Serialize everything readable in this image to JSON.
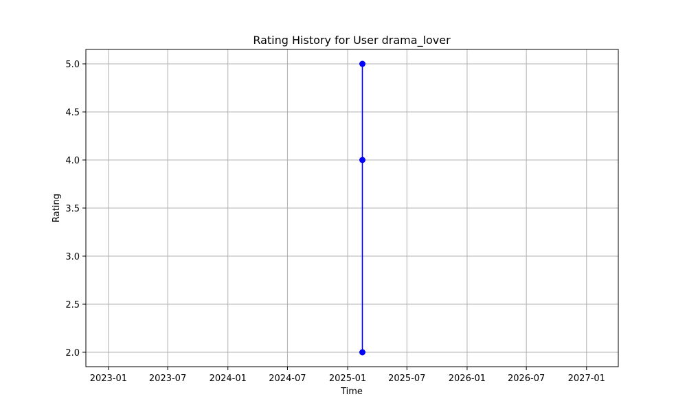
{
  "chart_data": {
    "type": "line",
    "title": "Rating History for User drama_lover",
    "xlabel": "Time",
    "ylabel": "Rating",
    "x_type": "date",
    "xlim": [
      "2022-10-24",
      "2027-04-08"
    ],
    "ylim": [
      1.85,
      5.15
    ],
    "x_ticks": [
      "2023-01-01",
      "2023-07-01",
      "2024-01-01",
      "2024-07-01",
      "2025-01-01",
      "2025-07-01",
      "2026-01-01",
      "2026-07-01",
      "2027-01-01"
    ],
    "x_tick_labels": [
      "2023-01",
      "2023-07",
      "2024-01",
      "2024-07",
      "2025-01",
      "2025-07",
      "2026-01",
      "2026-07",
      "2027-01"
    ],
    "y_ticks": [
      2.0,
      2.5,
      3.0,
      3.5,
      4.0,
      4.5,
      5.0
    ],
    "y_tick_labels": [
      "2.0",
      "2.5",
      "3.0",
      "3.5",
      "4.0",
      "4.5",
      "5.0"
    ],
    "grid": true,
    "series": [
      {
        "color": "#0000ff",
        "marker": "circle",
        "points": [
          {
            "x": "2025-02-15",
            "y": 5.0
          },
          {
            "x": "2025-02-15",
            "y": 4.0
          },
          {
            "x": "2025-02-15",
            "y": 2.0
          }
        ]
      }
    ]
  }
}
